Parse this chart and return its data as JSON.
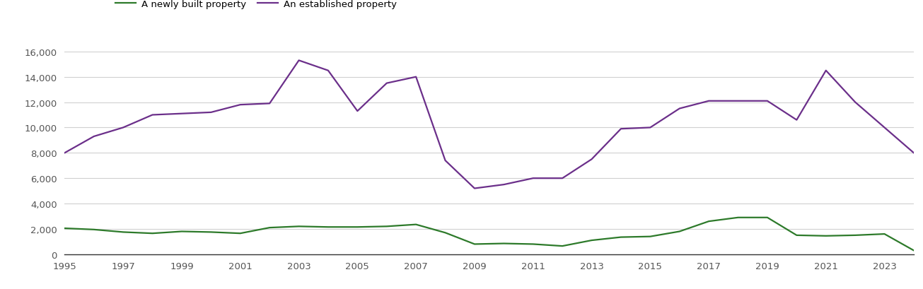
{
  "years": [
    1995,
    1996,
    1997,
    1998,
    1999,
    2000,
    2001,
    2002,
    2003,
    2004,
    2005,
    2006,
    2007,
    2008,
    2009,
    2010,
    2011,
    2012,
    2013,
    2014,
    2015,
    2016,
    2017,
    2018,
    2019,
    2020,
    2021,
    2022,
    2023,
    2024
  ],
  "newly_built": [
    2050,
    1950,
    1750,
    1650,
    1800,
    1750,
    1650,
    2100,
    2200,
    2150,
    2150,
    2200,
    2350,
    1700,
    800,
    850,
    800,
    650,
    1100,
    1350,
    1400,
    1800,
    2600,
    2900,
    2900,
    1500,
    1450,
    1500,
    1600,
    300
  ],
  "established": [
    8000,
    9300,
    10000,
    11000,
    11100,
    11200,
    11800,
    11900,
    15300,
    14500,
    11300,
    13500,
    14000,
    7400,
    5200,
    5500,
    6000,
    6000,
    7500,
    9900,
    10000,
    11500,
    12100,
    12100,
    12100,
    10600,
    14500,
    12000,
    10000,
    8000
  ],
  "newly_built_color": "#2d7a2a",
  "established_color": "#6b2f8a",
  "background_color": "#ffffff",
  "grid_color": "#d0d0d0",
  "ylim": [
    0,
    16000
  ],
  "yticks": [
    0,
    2000,
    4000,
    6000,
    8000,
    10000,
    12000,
    14000,
    16000
  ],
  "legend_newly": "A newly built property",
  "legend_established": "An established property",
  "line_width": 1.6
}
